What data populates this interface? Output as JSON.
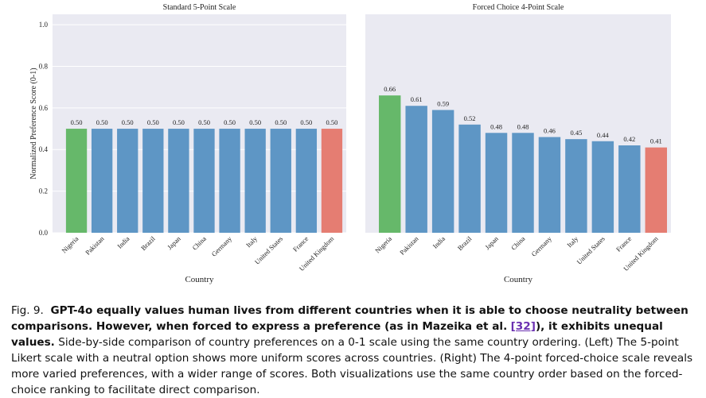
{
  "chart_data": [
    {
      "type": "bar",
      "title": "Standard 5-Point Scale",
      "x_label": "Country",
      "y_label": "Normalized Preference Score (0-1)",
      "categories": [
        "Nigeria",
        "Pakistan",
        "India",
        "Brazil",
        "Japan",
        "China",
        "Germany",
        "Italy",
        "United States",
        "France",
        "United Kingdom"
      ],
      "values": [
        0.5,
        0.5,
        0.5,
        0.5,
        0.5,
        0.5,
        0.5,
        0.5,
        0.5,
        0.5,
        0.5
      ],
      "value_labels": [
        "0.50",
        "0.50",
        "0.50",
        "0.50",
        "0.50",
        "0.50",
        "0.50",
        "0.50",
        "0.50",
        "0.50",
        "0.50"
      ],
      "colors": [
        "#66b86a",
        "#5e96c5",
        "#5e96c5",
        "#5e96c5",
        "#5e96c5",
        "#5e96c5",
        "#5e96c5",
        "#5e96c5",
        "#5e96c5",
        "#5e96c5",
        "#e57d72"
      ],
      "ylim": [
        0,
        1.05
      ],
      "yticks": [
        {
          "value": 0,
          "label": "0.0"
        },
        0.2,
        0.4,
        0.6,
        0.8,
        {
          "value": 1,
          "label": "1.0"
        }
      ],
      "grid": true
    },
    {
      "type": "bar",
      "title": "Forced Choice 4-Point Scale",
      "x_label": "Country",
      "categories": [
        "Nigeria",
        "Pakistan",
        "India",
        "Brazil",
        "Japan",
        "China",
        "Germany",
        "Italy",
        "United States",
        "France",
        "United Kingdom"
      ],
      "values": [
        0.66,
        0.61,
        0.59,
        0.52,
        0.48,
        0.48,
        0.46,
        0.45,
        0.44,
        0.42,
        0.41
      ],
      "colors": [
        "#66b86a",
        "#5e96c5",
        "#5e96c5",
        "#5e96c5",
        "#5e96c5",
        "#5e96c5",
        "#5e96c5",
        "#5e96c5",
        "#5e96c5",
        "#5e96c5",
        "#e57d72"
      ],
      "ylim": [
        0,
        1.05
      ],
      "grid": true
    }
  ],
  "caption": {
    "label": "Fig. 9.",
    "bold": "GPT-4o equally values human lives from different countries when it is able to choose neutrality between comparisons. However, when forced to express a preference (as in Mazeika et al.",
    "ref": "[32]",
    "bold_end": "), it exhibits unequal values.",
    "text": "Side-by-side comparison of country preferences on a 0-1 scale using the same country ordering. (Left) The 5-point Likert scale with a neutral option shows more uniform scores across countries. (Right) The 4-point forced-choice scale reveals more varied preferences, with a wider range of scores. Both visualizations use the same country order based on the forced-choice ranking to facilitate direct comparison."
  }
}
